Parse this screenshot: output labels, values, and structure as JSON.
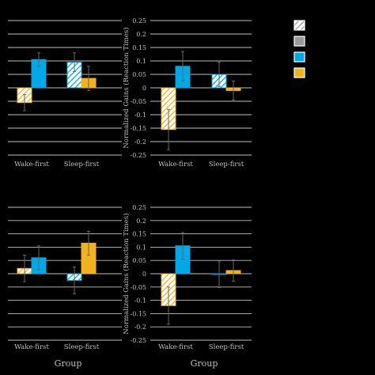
{
  "colors": {
    "background": "#000000",
    "grid": "#bfbfbf",
    "axis_text": "#bfbfbf",
    "blue": "#00a8e8",
    "orange": "#f2b21b",
    "gray": "#9a9a9a",
    "white": "#ffffff",
    "error_bar": "#666666"
  },
  "legend": {
    "entries": [
      {
        "pattern": "hatch-gray"
      },
      {
        "pattern": "solid-gray"
      },
      {
        "pattern": "solid-blue"
      },
      {
        "pattern": "solid-orange"
      }
    ]
  },
  "chart_data": [
    {
      "type": "bar",
      "panel": "top-left",
      "categories": [
        "Wake-first",
        "Sleep-first"
      ],
      "series": [
        {
          "fill": "orange",
          "pattern": "hatch",
          "values": [
            -0.055,
            null
          ],
          "errors": [
            0.03,
            null
          ]
        },
        {
          "fill": "blue",
          "pattern": "solid",
          "values": [
            0.105,
            null
          ],
          "errors": [
            0.025,
            null
          ]
        },
        {
          "fill": "blue",
          "pattern": "hatch",
          "values": [
            null,
            0.095
          ],
          "errors": [
            null,
            0.035
          ]
        },
        {
          "fill": "orange",
          "pattern": "solid",
          "values": [
            null,
            0.035
          ],
          "errors": [
            null,
            0.045
          ]
        }
      ],
      "ylim": [
        -0.25,
        0.25
      ],
      "yticks": [],
      "xlabel": "",
      "ylabel": "",
      "grid": true
    },
    {
      "type": "bar",
      "panel": "top-right",
      "categories": [
        "Wake-first",
        "Sleep-first"
      ],
      "series": [
        {
          "fill": "orange",
          "pattern": "hatch",
          "values": [
            -0.155,
            null
          ],
          "errors": [
            0.075,
            null
          ]
        },
        {
          "fill": "blue",
          "pattern": "solid",
          "values": [
            0.08,
            null
          ],
          "errors": [
            0.055,
            null
          ]
        },
        {
          "fill": "blue",
          "pattern": "hatch",
          "values": [
            null,
            0.05
          ],
          "errors": [
            null,
            0.045
          ]
        },
        {
          "fill": "orange",
          "pattern": "solid",
          "values": [
            null,
            -0.01
          ],
          "errors": [
            null,
            0.035
          ]
        }
      ],
      "ylim": [
        -0.25,
        0.25
      ],
      "yticks": [
        "0.25",
        "0.2",
        "0.15",
        "0.1",
        "0.05",
        "0",
        "-0.05",
        "-0.1",
        "-0.15",
        "-0.2",
        "-0.25"
      ],
      "xlabel": "",
      "ylabel": "Normalized Gains   (Reaction Times)",
      "grid": true
    },
    {
      "type": "bar",
      "panel": "bottom-left",
      "categories": [
        "Wake-first",
        "Sleep-first"
      ],
      "series": [
        {
          "fill": "orange",
          "pattern": "hatch",
          "values": [
            0.02,
            null
          ],
          "errors": [
            0.05,
            null
          ]
        },
        {
          "fill": "blue",
          "pattern": "solid",
          "values": [
            0.06,
            null
          ],
          "errors": [
            0.045,
            null
          ]
        },
        {
          "fill": "blue",
          "pattern": "hatch",
          "values": [
            null,
            -0.025
          ],
          "errors": [
            null,
            0.05
          ]
        },
        {
          "fill": "orange",
          "pattern": "solid",
          "values": [
            null,
            0.115
          ],
          "errors": [
            null,
            0.045
          ]
        }
      ],
      "ylim": [
        -0.25,
        0.25
      ],
      "yticks": [],
      "xlabel": "Group",
      "ylabel": "",
      "grid": true
    },
    {
      "type": "bar",
      "panel": "bottom-right",
      "categories": [
        "Wake-first",
        "Sleep-first"
      ],
      "series": [
        {
          "fill": "orange",
          "pattern": "hatch",
          "values": [
            -0.12,
            null
          ],
          "errors": [
            0.07,
            null
          ]
        },
        {
          "fill": "blue",
          "pattern": "solid",
          "values": [
            0.105,
            null
          ],
          "errors": [
            0.05,
            null
          ]
        },
        {
          "fill": "blue",
          "pattern": "hatch",
          "values": [
            null,
            -0.002
          ],
          "errors": [
            null,
            0.05
          ]
        },
        {
          "fill": "orange",
          "pattern": "solid",
          "values": [
            null,
            0.012
          ],
          "errors": [
            null,
            0.04
          ]
        }
      ],
      "ylim": [
        -0.25,
        0.25
      ],
      "yticks": [
        "0.25",
        "0.2",
        "0.15",
        "0.1",
        "0.05",
        "0",
        "-0.05",
        "-0.1",
        "-0.15",
        "-0.2",
        "-0.25"
      ],
      "xlabel": "Group",
      "ylabel": "Normalized Gains   (Reaction Times)",
      "grid": true
    }
  ]
}
